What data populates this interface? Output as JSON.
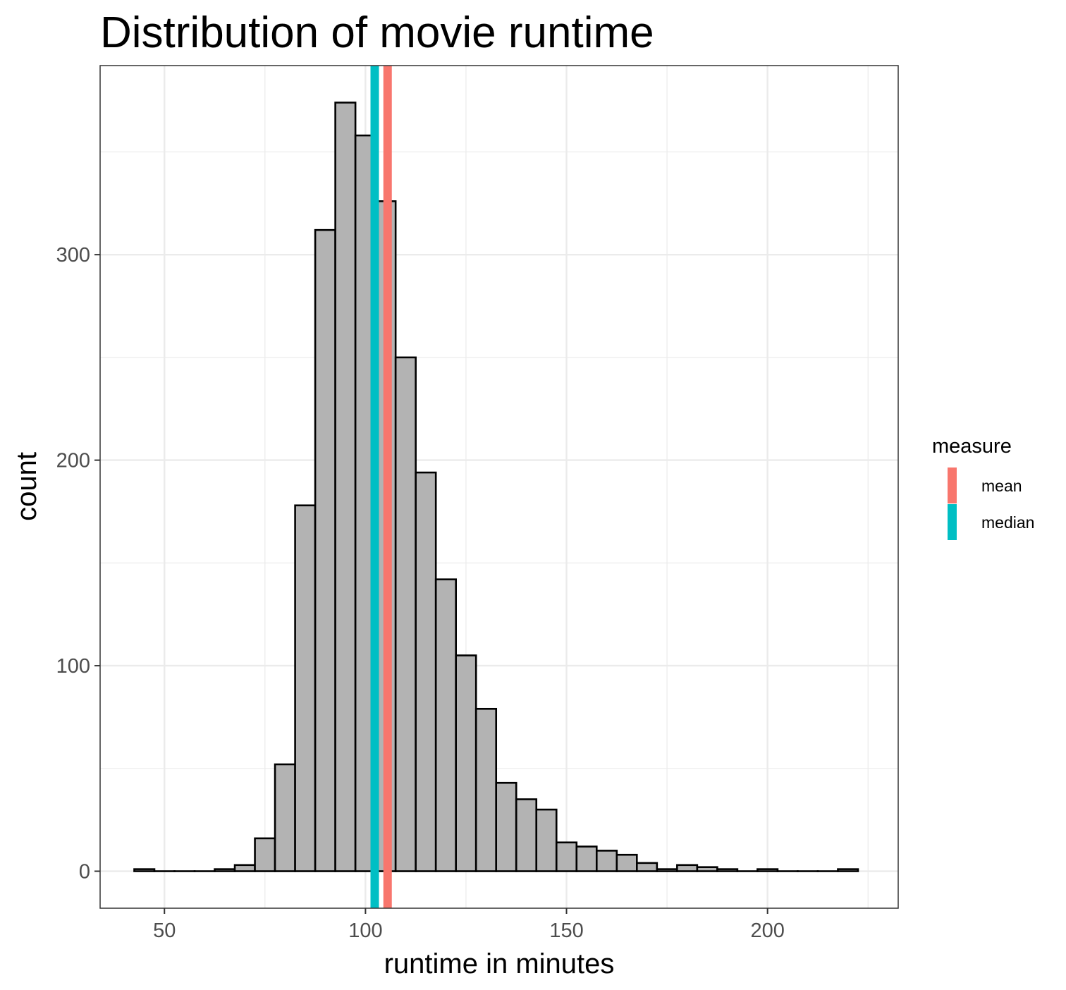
{
  "chart_data": {
    "type": "bar",
    "title": "Distribution of movie runtime",
    "xlabel": "runtime in minutes",
    "ylabel": "count",
    "bin_width": 5,
    "bins": [
      {
        "x_start": 42.5,
        "x_end": 47.5,
        "count": 1
      },
      {
        "x_start": 47.5,
        "x_end": 52.5,
        "count": 0
      },
      {
        "x_start": 52.5,
        "x_end": 57.5,
        "count": 0
      },
      {
        "x_start": 57.5,
        "x_end": 62.5,
        "count": 0
      },
      {
        "x_start": 62.5,
        "x_end": 67.5,
        "count": 1
      },
      {
        "x_start": 67.5,
        "x_end": 72.5,
        "count": 3
      },
      {
        "x_start": 72.5,
        "x_end": 77.5,
        "count": 16
      },
      {
        "x_start": 77.5,
        "x_end": 82.5,
        "count": 52
      },
      {
        "x_start": 82.5,
        "x_end": 87.5,
        "count": 178
      },
      {
        "x_start": 87.5,
        "x_end": 92.5,
        "count": 312
      },
      {
        "x_start": 92.5,
        "x_end": 97.5,
        "count": 374
      },
      {
        "x_start": 97.5,
        "x_end": 102.5,
        "count": 358
      },
      {
        "x_start": 102.5,
        "x_end": 107.5,
        "count": 326
      },
      {
        "x_start": 107.5,
        "x_end": 112.5,
        "count": 250
      },
      {
        "x_start": 112.5,
        "x_end": 117.5,
        "count": 194
      },
      {
        "x_start": 117.5,
        "x_end": 122.5,
        "count": 142
      },
      {
        "x_start": 122.5,
        "x_end": 127.5,
        "count": 105
      },
      {
        "x_start": 127.5,
        "x_end": 132.5,
        "count": 79
      },
      {
        "x_start": 132.5,
        "x_end": 137.5,
        "count": 43
      },
      {
        "x_start": 137.5,
        "x_end": 142.5,
        "count": 35
      },
      {
        "x_start": 142.5,
        "x_end": 147.5,
        "count": 30
      },
      {
        "x_start": 147.5,
        "x_end": 152.5,
        "count": 14
      },
      {
        "x_start": 152.5,
        "x_end": 157.5,
        "count": 12
      },
      {
        "x_start": 157.5,
        "x_end": 162.5,
        "count": 10
      },
      {
        "x_start": 162.5,
        "x_end": 167.5,
        "count": 8
      },
      {
        "x_start": 167.5,
        "x_end": 172.5,
        "count": 4
      },
      {
        "x_start": 172.5,
        "x_end": 177.5,
        "count": 1
      },
      {
        "x_start": 177.5,
        "x_end": 182.5,
        "count": 3
      },
      {
        "x_start": 182.5,
        "x_end": 187.5,
        "count": 2
      },
      {
        "x_start": 187.5,
        "x_end": 192.5,
        "count": 1
      },
      {
        "x_start": 192.5,
        "x_end": 197.5,
        "count": 0
      },
      {
        "x_start": 197.5,
        "x_end": 202.5,
        "count": 1
      },
      {
        "x_start": 202.5,
        "x_end": 207.5,
        "count": 0
      },
      {
        "x_start": 207.5,
        "x_end": 212.5,
        "count": 0
      },
      {
        "x_start": 212.5,
        "x_end": 217.5,
        "count": 0
      },
      {
        "x_start": 217.5,
        "x_end": 222.5,
        "count": 1
      }
    ],
    "vlines": [
      {
        "measure": "mean",
        "x": 105.5,
        "color": "#F8766D"
      },
      {
        "measure": "median",
        "x": 102.3,
        "color": "#00BFC4"
      }
    ],
    "xlim": [
      34,
      232.5
    ],
    "ylim": [
      -18,
      392
    ],
    "x_ticks": [
      50,
      100,
      150,
      200
    ],
    "x_tick_labels": [
      "50",
      "100",
      "150",
      "200"
    ],
    "y_ticks": [
      0,
      100,
      200,
      300
    ],
    "y_tick_labels": [
      "0",
      "100",
      "200",
      "300"
    ],
    "grid": true,
    "bar_fill": "#B3B3B3",
    "bar_outline": "#000000",
    "legend": {
      "title": "measure",
      "position": "right",
      "items": [
        {
          "label": "mean",
          "color": "#F8766D"
        },
        {
          "label": "median",
          "color": "#00BFC4"
        }
      ]
    }
  }
}
